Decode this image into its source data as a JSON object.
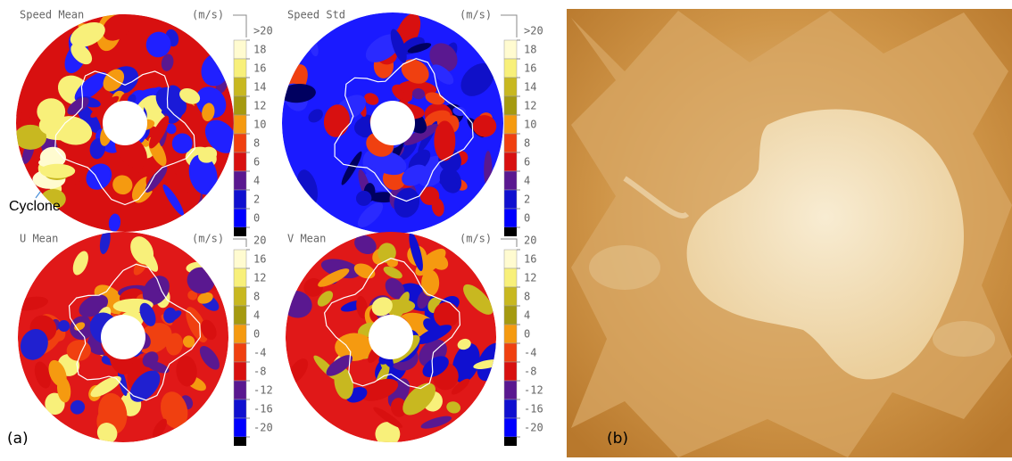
{
  "panel_a": {
    "label": "(a)",
    "annotation": "Cyclone",
    "maps": [
      {
        "title": "Speed Mean",
        "unit": "(m/s)",
        "colorbar": [
          ">20",
          "18",
          "16",
          "14",
          "12",
          "10",
          "8",
          "6",
          "4",
          "2",
          "0"
        ]
      },
      {
        "title": "Speed Std",
        "unit": "(m/s)",
        "colorbar": [
          ">20",
          "18",
          "16",
          "14",
          "12",
          "10",
          "8",
          "6",
          "4",
          "2",
          "0"
        ]
      },
      {
        "title": "U Mean",
        "unit": "(m/s)",
        "colorbar": [
          "20",
          "16",
          "12",
          "8",
          "4",
          "0",
          "-4",
          "-8",
          "-12",
          "-16",
          "-20"
        ]
      },
      {
        "title": "V Mean",
        "unit": "(m/s)",
        "colorbar": [
          "20",
          "16",
          "12",
          "8",
          "4",
          "0",
          "-4",
          "-8",
          "-12",
          "-16",
          "-20"
        ]
      }
    ]
  },
  "panel_b": {
    "label": "(b)"
  }
}
